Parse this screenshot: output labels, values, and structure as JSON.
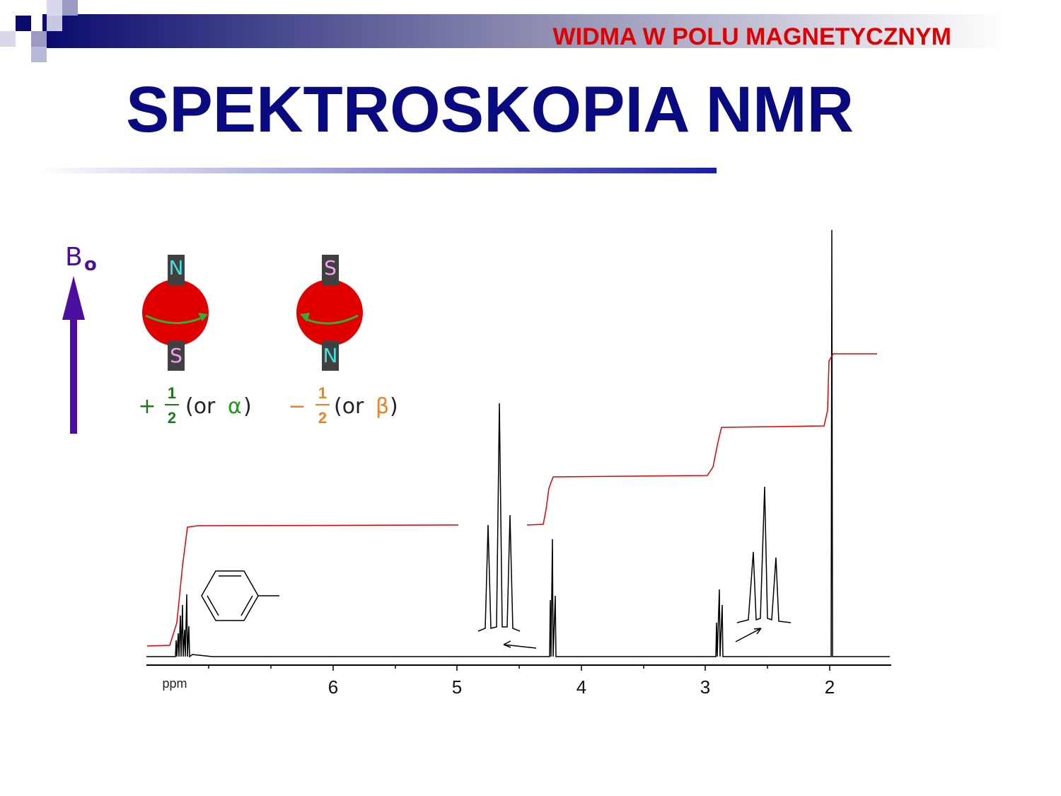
{
  "header": {
    "section": "WIDMA W POLU MAGNETYCZNYM",
    "title": "SPEKTROSKOPIA NMR"
  },
  "figure": {
    "field": {
      "label": "B",
      "subscript": "o"
    },
    "spin_up": {
      "top_pole": "N",
      "bottom_pole": "S",
      "sign": "+",
      "numerator": "1",
      "denominator": "2",
      "open": "(or",
      "greek": "α",
      "close": ")"
    },
    "spin_down": {
      "top_pole": "S",
      "bottom_pole": "N",
      "sign": "−",
      "numerator": "1",
      "denominator": "2",
      "open": "(or",
      "greek": "β",
      "close": ")"
    }
  },
  "spectrum": {
    "unit": "ppm",
    "tick_labels": [
      "6",
      "5",
      "4",
      "3",
      "2"
    ]
  }
}
